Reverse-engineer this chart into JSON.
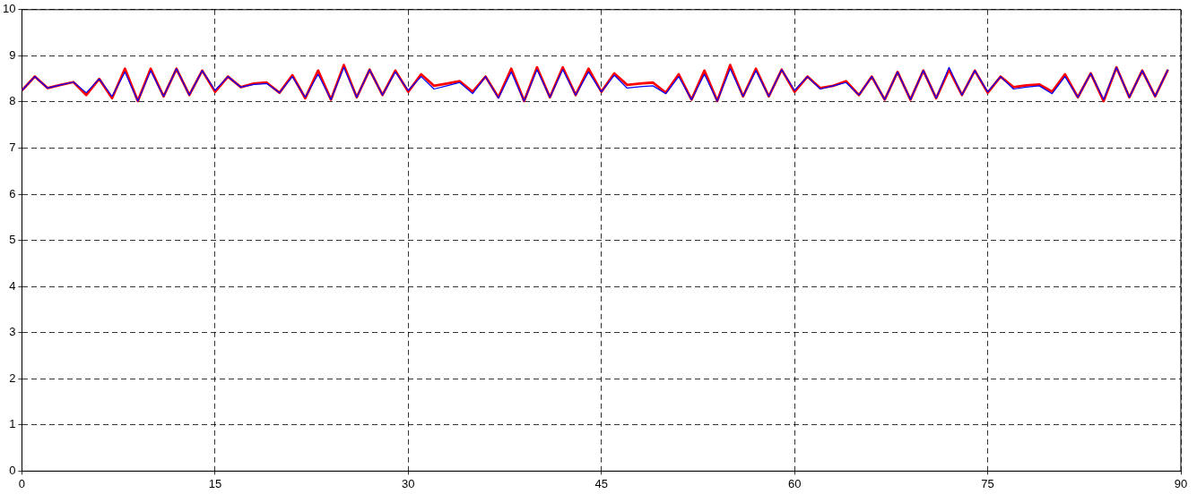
{
  "chart_data": {
    "type": "line",
    "x": [
      0,
      1,
      2,
      3,
      4,
      5,
      6,
      7,
      8,
      9,
      10,
      11,
      12,
      13,
      14,
      15,
      16,
      17,
      18,
      19,
      20,
      21,
      22,
      23,
      24,
      25,
      26,
      27,
      28,
      29,
      30,
      31,
      32,
      33,
      34,
      35,
      36,
      37,
      38,
      39,
      40,
      41,
      42,
      43,
      44,
      45,
      46,
      47,
      48,
      49,
      50,
      51,
      52,
      53,
      54,
      55,
      56,
      57,
      58,
      59,
      60,
      61,
      62,
      63,
      64,
      65,
      66,
      67,
      68,
      69,
      70,
      71,
      72,
      73,
      74,
      75,
      76,
      77,
      78,
      79,
      80,
      81,
      82,
      83,
      84,
      85,
      86,
      87,
      88,
      89
    ],
    "series": [
      {
        "color": "#ff0000",
        "values": [
          8.25,
          8.55,
          8.3,
          8.37,
          8.43,
          8.15,
          8.5,
          8.08,
          8.72,
          8.02,
          8.72,
          8.12,
          8.72,
          8.15,
          8.68,
          8.22,
          8.55,
          8.32,
          8.4,
          8.42,
          8.2,
          8.58,
          8.08,
          8.68,
          8.05,
          8.8,
          8.1,
          8.7,
          8.15,
          8.68,
          8.22,
          8.6,
          8.35,
          8.4,
          8.45,
          8.22,
          8.55,
          8.1,
          8.72,
          8.02,
          8.75,
          8.1,
          8.75,
          8.15,
          8.72,
          8.22,
          8.62,
          8.37,
          8.4,
          8.42,
          8.2,
          8.6,
          8.05,
          8.68,
          8.02,
          8.8,
          8.12,
          8.72,
          8.12,
          8.7,
          8.22,
          8.55,
          8.3,
          8.35,
          8.45,
          8.15,
          8.55,
          8.05,
          8.65,
          8.05,
          8.68,
          8.08,
          8.7,
          8.15,
          8.68,
          8.2,
          8.55,
          8.32,
          8.36,
          8.38,
          8.22,
          8.6,
          8.1,
          8.62,
          8.02,
          8.75,
          8.1,
          8.68,
          8.12,
          8.7
        ]
      },
      {
        "color": "#0000ff",
        "values": [
          8.25,
          8.55,
          8.3,
          8.37,
          8.43,
          8.2,
          8.5,
          8.12,
          8.65,
          8.02,
          8.68,
          8.12,
          8.72,
          8.15,
          8.68,
          8.25,
          8.55,
          8.32,
          8.38,
          8.4,
          8.2,
          8.55,
          8.1,
          8.6,
          8.05,
          8.75,
          8.1,
          8.7,
          8.15,
          8.65,
          8.25,
          8.55,
          8.28,
          8.35,
          8.42,
          8.18,
          8.55,
          8.08,
          8.65,
          8.02,
          8.7,
          8.1,
          8.7,
          8.15,
          8.65,
          8.22,
          8.58,
          8.3,
          8.33,
          8.35,
          8.18,
          8.55,
          8.05,
          8.6,
          8.02,
          8.72,
          8.12,
          8.68,
          8.12,
          8.7,
          8.25,
          8.55,
          8.28,
          8.35,
          8.42,
          8.15,
          8.55,
          8.05,
          8.65,
          8.05,
          8.68,
          8.08,
          8.75,
          8.15,
          8.68,
          8.22,
          8.55,
          8.28,
          8.32,
          8.35,
          8.18,
          8.55,
          8.1,
          8.62,
          8.05,
          8.75,
          8.1,
          8.68,
          8.12,
          8.7
        ]
      }
    ],
    "xlim": [
      0,
      90
    ],
    "xticks": [
      0,
      15,
      30,
      45,
      60,
      75,
      90
    ],
    "ylim": [
      0,
      10
    ],
    "yticks": [
      0,
      1,
      2,
      3,
      4,
      5,
      6,
      7,
      8,
      9,
      10
    ],
    "grid": true,
    "line_style": "solid",
    "marker": "none"
  }
}
